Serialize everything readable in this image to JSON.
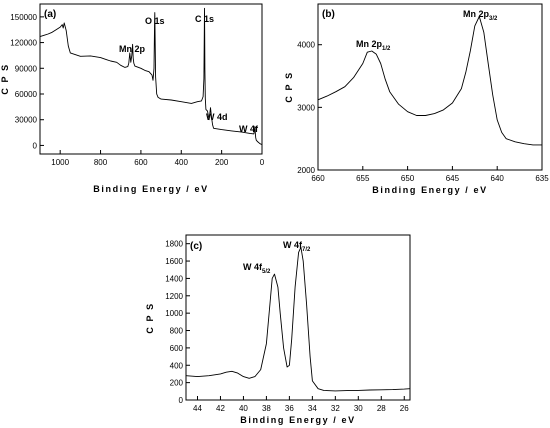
{
  "chart_data": [
    {
      "type": "line",
      "panel_label": "(a)",
      "xlabel": "Binding Energy / eV",
      "ylabel": "C P S",
      "xlim": [
        1100,
        0
      ],
      "ylim": [
        -10000,
        165000
      ],
      "x_ticks": [
        1000,
        800,
        600,
        400,
        200,
        0
      ],
      "y_ticks": [
        0,
        30000,
        60000,
        90000,
        120000,
        150000
      ],
      "series": [
        {
          "x": [
            1100,
            1080,
            1060,
            1040,
            1020,
            1000,
            990,
            985,
            980,
            970,
            960,
            950,
            900,
            850,
            800,
            770,
            750,
            720,
            700,
            680,
            665,
            660,
            655,
            650,
            645,
            641,
            638,
            635,
            630,
            600,
            580,
            560,
            545,
            540,
            535,
            532,
            531,
            529,
            527,
            522,
            515,
            500,
            450,
            400,
            350,
            320,
            300,
            292,
            288,
            285,
            284,
            283,
            281,
            278,
            270,
            262,
            258,
            255,
            250,
            245,
            240,
            200,
            150,
            100,
            60,
            40,
            35,
            33,
            31,
            28,
            20,
            10,
            0
          ],
          "y": [
            127000,
            128500,
            130000,
            132000,
            135000,
            138000,
            141000,
            137000,
            143000,
            134000,
            116000,
            108000,
            104000,
            104500,
            102500,
            100000,
            98500,
            97000,
            93500,
            91000,
            92000,
            96000,
            108000,
            97000,
            105000,
            118000,
            102000,
            96000,
            92500,
            90000,
            87500,
            86000,
            82000,
            76000,
            90000,
            145000,
            155000,
            118000,
            80000,
            60000,
            56000,
            54000,
            53000,
            51000,
            49000,
            51000,
            52000,
            57000,
            78000,
            160000,
            130000,
            88000,
            55000,
            42000,
            40000,
            30000,
            38000,
            44000,
            33000,
            24000,
            20000,
            18500,
            17000,
            15500,
            14000,
            13500,
            22000,
            15000,
            9000,
            6000,
            4000,
            2000,
            1000
          ]
        }
      ],
      "annotations": [
        "Mn 2p",
        "O 1s",
        "C 1s",
        "W 4d",
        "W 4f"
      ]
    },
    {
      "type": "line",
      "panel_label": "(b)",
      "xlabel": "Binding Energy / eV",
      "ylabel": "C P S",
      "xlim": [
        660,
        635
      ],
      "ylim": [
        2000,
        4650
      ],
      "x_ticks": [
        660,
        655,
        650,
        645,
        640,
        635
      ],
      "y_ticks": [
        2000,
        3000,
        4000
      ],
      "series": [
        {
          "x": [
            660,
            659,
            658,
            657,
            656,
            655,
            654.5,
            654,
            653.5,
            653,
            652.5,
            652,
            651,
            650,
            649,
            648,
            647,
            646,
            645,
            644,
            643.5,
            643,
            642.5,
            642,
            641.5,
            641,
            640.5,
            640,
            639.5,
            639,
            638,
            637,
            636,
            635
          ],
          "y": [
            3120,
            3180,
            3250,
            3330,
            3480,
            3700,
            3880,
            3900,
            3850,
            3700,
            3450,
            3250,
            3050,
            2930,
            2870,
            2870,
            2900,
            2960,
            3070,
            3300,
            3560,
            3900,
            4300,
            4450,
            4200,
            3700,
            3200,
            2800,
            2600,
            2500,
            2450,
            2420,
            2400,
            2400
          ]
        }
      ],
      "annotations": [
        {
          "main": "Mn 2p",
          "sub": "1/2"
        },
        {
          "main": "Mn 2p",
          "sub": "3/2"
        }
      ]
    },
    {
      "type": "line",
      "panel_label": "(c)",
      "xlabel": "Binding Energy / eV",
      "ylabel": "C P S",
      "xlim": [
        45,
        25.5
      ],
      "ylim": [
        0,
        1900
      ],
      "x_ticks": [
        44,
        42,
        40,
        38,
        36,
        34,
        32,
        30,
        28,
        26
      ],
      "y_ticks": [
        0,
        200,
        400,
        600,
        800,
        1000,
        1200,
        1400,
        1600,
        1800
      ],
      "series": [
        {
          "x": [
            45,
            44,
            43,
            42,
            41.5,
            41,
            40.5,
            40,
            39.5,
            39,
            38.5,
            38,
            37.7,
            37.5,
            37.3,
            37,
            36.8,
            36.5,
            36.2,
            36,
            35.8,
            35.5,
            35.2,
            35,
            34.8,
            34.5,
            34.2,
            34,
            33.5,
            33,
            32,
            31,
            30,
            29,
            28,
            27,
            26,
            25.5
          ],
          "y": [
            280,
            270,
            280,
            300,
            320,
            330,
            310,
            270,
            250,
            270,
            350,
            650,
            1100,
            1400,
            1450,
            1300,
            1000,
            600,
            380,
            400,
            700,
            1300,
            1700,
            1760,
            1600,
            1100,
            500,
            220,
            130,
            110,
            105,
            108,
            110,
            115,
            118,
            120,
            125,
            130
          ]
        }
      ],
      "annotations": [
        {
          "main": "W 4f",
          "sub": "5/2"
        },
        {
          "main": "W 4f",
          "sub": "7/2"
        }
      ]
    }
  ],
  "tick_labels": {
    "a_x": [
      "1000",
      "800",
      "600",
      "400",
      "200",
      "0"
    ],
    "a_y": [
      "0",
      "30000",
      "60000",
      "90000",
      "120000",
      "150000"
    ],
    "b_x": [
      "660",
      "655",
      "650",
      "645",
      "640",
      "635"
    ],
    "b_y": [
      "2000",
      "3000",
      "4000"
    ],
    "c_x": [
      "44",
      "42",
      "40",
      "38",
      "36",
      "34",
      "32",
      "30",
      "28",
      "26"
    ],
    "c_y": [
      "0",
      "200",
      "400",
      "600",
      "800",
      "1000",
      "1200",
      "1400",
      "1600",
      "1800"
    ]
  }
}
